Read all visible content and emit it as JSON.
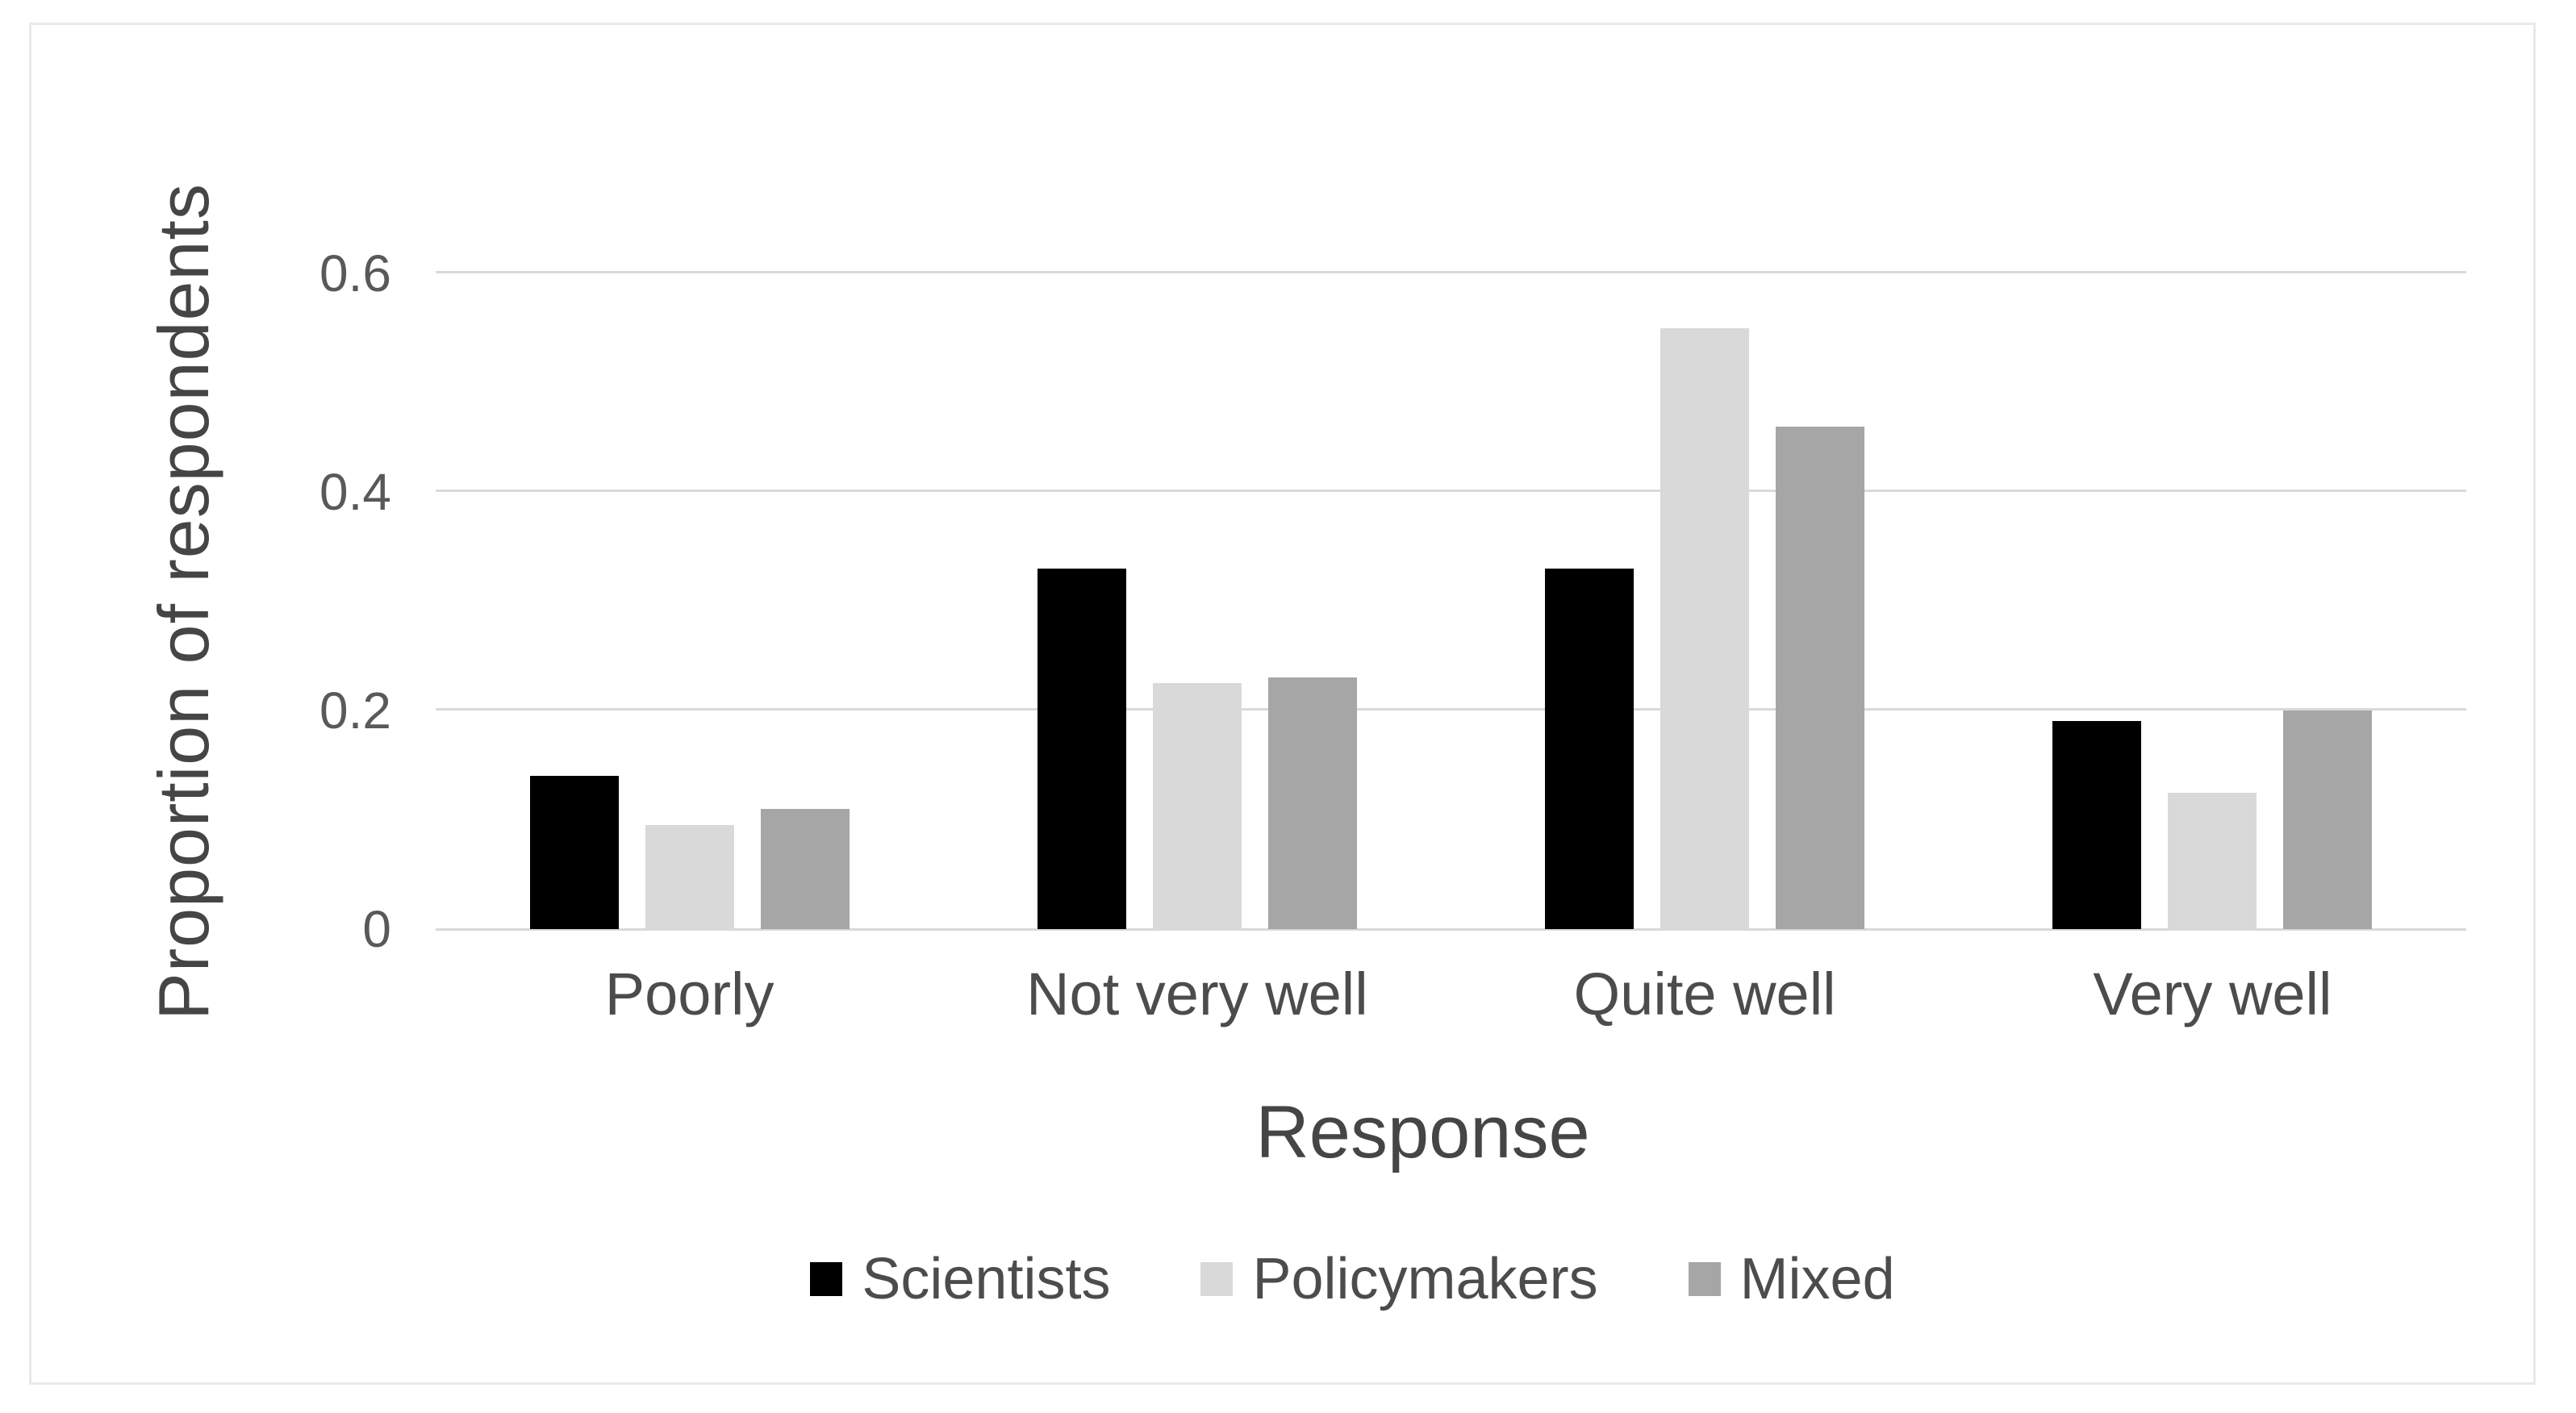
{
  "figure": {
    "background": "#ffffff",
    "border_color": "#e9e9e9"
  },
  "chart_data": {
    "type": "bar",
    "title": "",
    "xlabel": "Response",
    "ylabel": "Proportion of respondents",
    "categories": [
      "Poorly",
      "Not very well",
      "Quite well",
      "Very well"
    ],
    "series": [
      {
        "name": "Scientists",
        "color": "#000000",
        "values": [
          0.14,
          0.33,
          0.33,
          0.19
        ]
      },
      {
        "name": "Policymakers",
        "color": "#d9d9d9",
        "values": [
          0.095,
          0.225,
          0.55,
          0.125
        ]
      },
      {
        "name": "Mixed",
        "color": "#a6a6a6",
        "values": [
          0.11,
          0.23,
          0.46,
          0.2
        ]
      }
    ],
    "y_ticks": [
      0,
      0.2,
      0.4,
      0.6
    ],
    "y_tick_labels": [
      "0",
      "0.2",
      "0.4",
      "0.6"
    ],
    "ylim": [
      0,
      0.65
    ],
    "grid": true,
    "gridline_color": "#d9d9d9",
    "axis_line_color": "#d9d9d9",
    "text_color": "#595959",
    "legend_position": "bottom"
  }
}
